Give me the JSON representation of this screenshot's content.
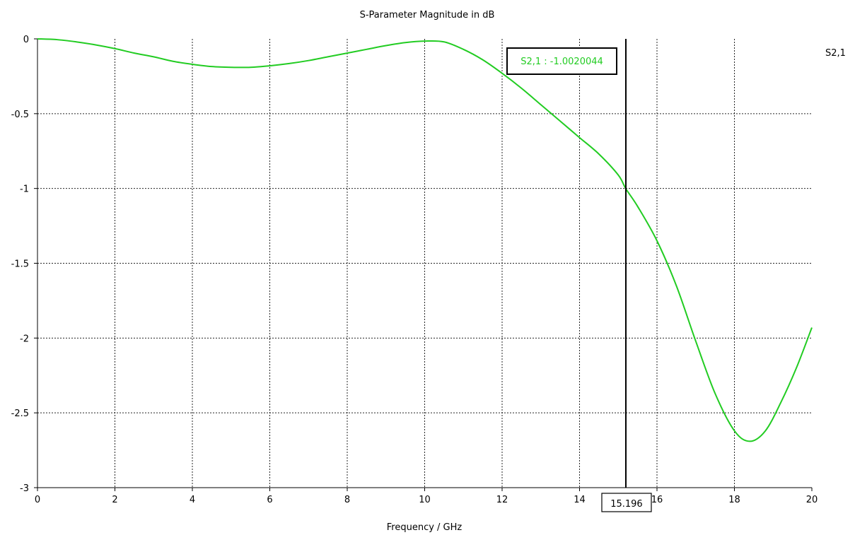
{
  "chart_data": {
    "type": "line",
    "title": "S-Parameter Magnitude in dB",
    "xlabel": "Frequency / GHz",
    "ylabel": "",
    "xlim": [
      0,
      20
    ],
    "ylim": [
      -3,
      0
    ],
    "x_ticks": [
      0,
      2,
      4,
      6,
      8,
      10,
      12,
      14,
      16,
      18,
      20
    ],
    "x_tick_labels": [
      "0",
      "2",
      "4",
      "6",
      "8",
      "10",
      "12",
      "14",
      "16",
      "18",
      "20"
    ],
    "y_ticks": [
      0,
      -0.5,
      -1,
      -1.5,
      -2,
      -2.5,
      -3
    ],
    "y_tick_labels": [
      "0",
      "-0.5",
      "-1",
      "-1.5",
      "-2",
      "-2.5",
      "-3"
    ],
    "grid": true,
    "legend": {
      "placement": "top-right",
      "entries": [
        "S2,1"
      ]
    },
    "series": [
      {
        "name": "S2,1",
        "color": "#22cc22",
        "x": [
          0,
          0.5,
          1,
          1.5,
          2,
          2.5,
          3,
          3.5,
          4,
          4.5,
          5,
          5.5,
          6,
          6.5,
          7,
          7.5,
          8,
          8.5,
          9,
          9.5,
          10,
          10.5,
          11,
          11.5,
          12,
          12.5,
          13,
          13.5,
          14,
          14.5,
          15,
          15.196,
          15.5,
          16,
          16.5,
          17,
          17.5,
          18,
          18.4,
          18.8,
          19.2,
          19.6,
          20
        ],
        "y": [
          0,
          -0.005,
          -0.02,
          -0.04,
          -0.065,
          -0.095,
          -0.12,
          -0.15,
          -0.17,
          -0.185,
          -0.19,
          -0.19,
          -0.18,
          -0.165,
          -0.145,
          -0.12,
          -0.095,
          -0.07,
          -0.045,
          -0.025,
          -0.015,
          -0.02,
          -0.07,
          -0.14,
          -0.23,
          -0.33,
          -0.44,
          -0.55,
          -0.66,
          -0.77,
          -0.91,
          -1.0020044,
          -1.12,
          -1.35,
          -1.65,
          -2.02,
          -2.37,
          -2.62,
          -2.69,
          -2.62,
          -2.43,
          -2.2,
          -1.93
        ]
      }
    ],
    "annotations": {
      "marker": {
        "x": 15.196,
        "x_label": "15.196",
        "series_label": "S2,1",
        "value_label": "S2,1 : -1.0020044"
      }
    }
  }
}
